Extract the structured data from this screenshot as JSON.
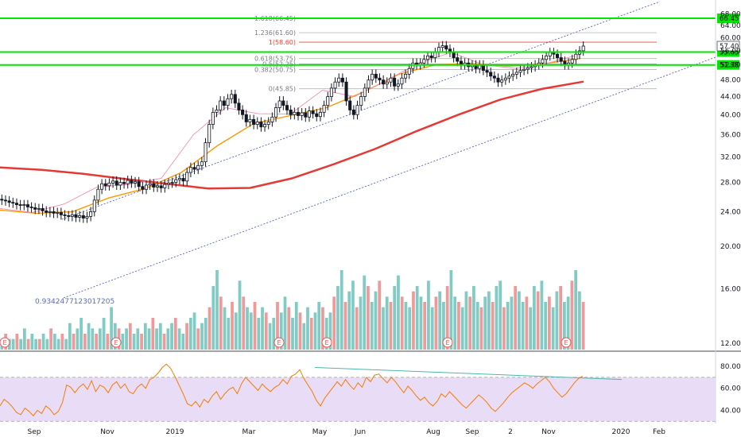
{
  "chart_data": [
    {
      "type": "candlestick",
      "panel": "price",
      "y_scale": "log",
      "ylim": [
        11.5,
        75
      ],
      "y_ticks": [
        "12.00",
        "16.00",
        "20.00",
        "24.00",
        "28.00",
        "32.00",
        "36.00",
        "40.00",
        "44.00",
        "48.00",
        "52.00",
        "56.00",
        "60.00",
        "64.00",
        "68.00"
      ],
      "x_ticks": [
        "Sep",
        "Nov",
        "2019",
        "Mar",
        "May",
        "Jun",
        "Aug",
        "Sep",
        "2",
        "Nov",
        "2020",
        "Feb"
      ],
      "horizontal_levels": [
        {
          "value": 66.45,
          "label": "66.45",
          "color": "#00e600"
        },
        {
          "value": 55.63,
          "label": "55.63",
          "color": "#00e600"
        },
        {
          "value": 51.98,
          "label": "51.98",
          "color": "#00e600"
        }
      ],
      "last_price": {
        "value": 57.4,
        "label": "57.40"
      },
      "fibonacci": [
        {
          "label": "1.618(66.45)",
          "value": 66.45,
          "color": "#b2b5be"
        },
        {
          "label": "1.236(61.60)",
          "value": 61.6,
          "color": "#b2b5be"
        },
        {
          "label": "1(58.60)",
          "value": 58.6,
          "color": "#f44336"
        },
        {
          "label": "0.618(53.75)",
          "value": 53.75,
          "color": "#b2b5be"
        },
        {
          "label": "0.5(52.25)",
          "value": 52.25,
          "color": "#b2b5be"
        },
        {
          "label": "0.382(50.75)",
          "value": 50.75,
          "color": "#b2b5be"
        },
        {
          "label": "0(45.85)",
          "value": 45.85,
          "color": "#b2b5be"
        }
      ],
      "channel_annotation": "0.9342477123017205",
      "candles_close": [
        25.5,
        25.4,
        25.2,
        25.1,
        24.9,
        24.8,
        24.9,
        24.6,
        24.5,
        24.3,
        24.4,
        24.1,
        23.9,
        24.0,
        23.8,
        23.9,
        23.6,
        23.5,
        23.4,
        23.6,
        23.3,
        23.5,
        23.2,
        23.4,
        24.0,
        25.5,
        27.0,
        27.8,
        27.5,
        27.9,
        28.2,
        27.6,
        28.0,
        27.8,
        28.3,
        27.9,
        28.1,
        27.4,
        27.0,
        27.6,
        27.8,
        27.3,
        27.5,
        27.2,
        27.7,
        27.9,
        28.0,
        28.4,
        28.6,
        28.2,
        29.5,
        30.3,
        30.0,
        30.6,
        31.2,
        34.5,
        38.0,
        40.5,
        41.0,
        43.0,
        42.0,
        43.5,
        44.5,
        42.5,
        41.0,
        40.0,
        38.5,
        39.0,
        38.0,
        38.5,
        37.5,
        38.0,
        38.5,
        39.5,
        41.5,
        43.0,
        42.0,
        41.0,
        40.0,
        40.5,
        39.8,
        40.4,
        39.5,
        40.8,
        40.2,
        39.6,
        40.5,
        42.0,
        44.0,
        46.0,
        47.5,
        48.5,
        47.5,
        43.0,
        41.0,
        40.0,
        42.0,
        44.0,
        46.0,
        48.0,
        49.5,
        48.5,
        48.0,
        47.0,
        47.5,
        48.5,
        46.5,
        47.0,
        48.5,
        49.5,
        51.0,
        52.5,
        52.0,
        52.5,
        53.5,
        54.5,
        54.0,
        55.5,
        57.0,
        57.5,
        56.5,
        55.5,
        54.0,
        53.0,
        52.0,
        52.5,
        51.5,
        52.0,
        51.0,
        52.0,
        50.5,
        50.0,
        49.0,
        48.5,
        47.5,
        48.0,
        48.5,
        49.0,
        49.5,
        50.0,
        50.5,
        50.8,
        51.2,
        51.5,
        52.0,
        52.5,
        53.5,
        54.5,
        55.5,
        55.0,
        54.0,
        53.0,
        52.0,
        52.5,
        53.5,
        55.0,
        56.0,
        57.4
      ],
      "candle_colors": {
        "up": "#26a69a",
        "down": "#ef5350"
      },
      "moving_averages": [
        {
          "name": "200-period",
          "color": "#e53935",
          "values": [
            30.3,
            29.9,
            29.3,
            28.5,
            27.8,
            27.1,
            27.2,
            28.6,
            30.8,
            33.4,
            36.7,
            40.0,
            43.3,
            45.8,
            47.6
          ]
        },
        {
          "name": "50-period",
          "color": "#ff9800",
          "values": [
            24.2,
            23.8,
            24.0,
            25.8,
            27.1,
            29.5,
            34.0,
            38.2,
            39.8,
            41.5,
            45.0,
            49.5,
            52.0,
            52.4,
            51.6,
            52.3,
            53.8
          ]
        },
        {
          "name": "20-period",
          "color": "#f48fb1",
          "values": [
            24.4,
            23.9,
            25.0,
            27.3,
            27.7,
            28.6,
            36.0,
            41.5,
            40.2,
            40.1,
            45.5,
            44.0,
            48.0,
            52.5,
            55.5,
            52.0,
            51.0,
            52.5,
            55.0
          ]
        }
      ]
    },
    {
      "type": "bar",
      "panel": "volume",
      "series": [
        {
          "values": [
            2,
            3,
            2,
            2,
            3,
            2,
            4,
            2,
            3,
            2,
            2,
            3,
            2,
            4,
            3,
            2,
            3,
            2,
            5,
            3,
            4,
            6,
            3,
            5,
            4,
            3,
            4,
            6,
            3,
            8,
            5,
            4,
            3,
            4,
            5,
            3,
            4,
            3,
            5,
            4,
            6,
            4,
            5,
            3,
            4,
            5,
            6,
            4,
            3,
            5,
            6,
            7,
            4,
            5,
            6,
            8,
            12,
            15,
            10,
            8,
            6,
            9,
            7,
            13,
            10,
            8,
            7,
            9,
            6,
            8,
            7,
            5,
            6,
            9,
            7,
            10,
            8,
            6,
            9,
            7,
            5,
            8,
            6,
            7,
            9,
            8,
            6,
            7,
            10,
            12,
            15,
            9,
            11,
            13,
            8,
            10,
            14,
            12,
            9,
            11,
            13,
            8,
            10,
            9,
            12,
            14,
            10,
            9,
            8,
            11,
            12,
            10,
            9,
            13,
            8,
            10,
            11,
            9,
            12,
            15,
            10,
            9,
            8,
            11,
            10,
            12,
            9,
            8,
            10,
            11,
            9,
            12,
            13,
            8,
            9,
            10,
            12,
            11,
            9,
            10,
            8,
            12,
            11,
            13,
            9,
            10,
            8,
            11,
            12,
            9,
            10,
            13,
            15,
            11,
            9
          ]
        }
      ],
      "earnings_markers": [
        "E",
        "E",
        "E",
        "E",
        "E",
        "E"
      ]
    },
    {
      "type": "line",
      "panel": "rsi",
      "y_ticks": [
        "40.00",
        "60.00",
        "80.00"
      ],
      "ylim": [
        28,
        88
      ],
      "band": [
        30,
        70
      ],
      "band_color": "#e9dcf7",
      "series": [
        {
          "color": "#f57c00",
          "values": [
            44,
            50,
            47,
            43,
            38,
            36,
            42,
            39,
            35,
            40,
            37,
            44,
            41,
            36,
            39,
            47,
            63,
            61,
            56,
            61,
            64,
            59,
            67,
            57,
            63,
            61,
            56,
            63,
            66,
            60,
            64,
            57,
            55,
            61,
            64,
            60,
            68,
            70,
            74,
            79,
            82,
            78,
            71,
            63,
            55,
            46,
            44,
            48,
            43,
            50,
            47,
            53,
            57,
            50,
            55,
            59,
            61,
            55,
            64,
            70,
            66,
            62,
            58,
            64,
            60,
            57,
            61,
            63,
            68,
            64,
            71,
            73,
            77,
            69,
            63,
            57,
            49,
            44,
            51,
            56,
            61,
            66,
            62,
            68,
            63,
            59,
            65,
            61,
            70,
            66,
            72,
            73,
            69,
            65,
            70,
            66,
            61,
            56,
            62,
            58,
            53,
            49,
            52,
            47,
            44,
            48,
            55,
            52,
            57,
            53,
            49,
            45,
            42,
            46,
            50,
            54,
            51,
            47,
            42,
            39,
            43,
            47,
            52,
            56,
            59,
            62,
            65,
            63,
            60,
            64,
            67,
            70,
            66,
            60,
            56,
            52,
            55,
            60,
            65,
            69,
            71
          ]
        }
      ],
      "divergence_line": {
        "from": 79,
        "to": 68,
        "color": "#4db6ac"
      }
    }
  ]
}
